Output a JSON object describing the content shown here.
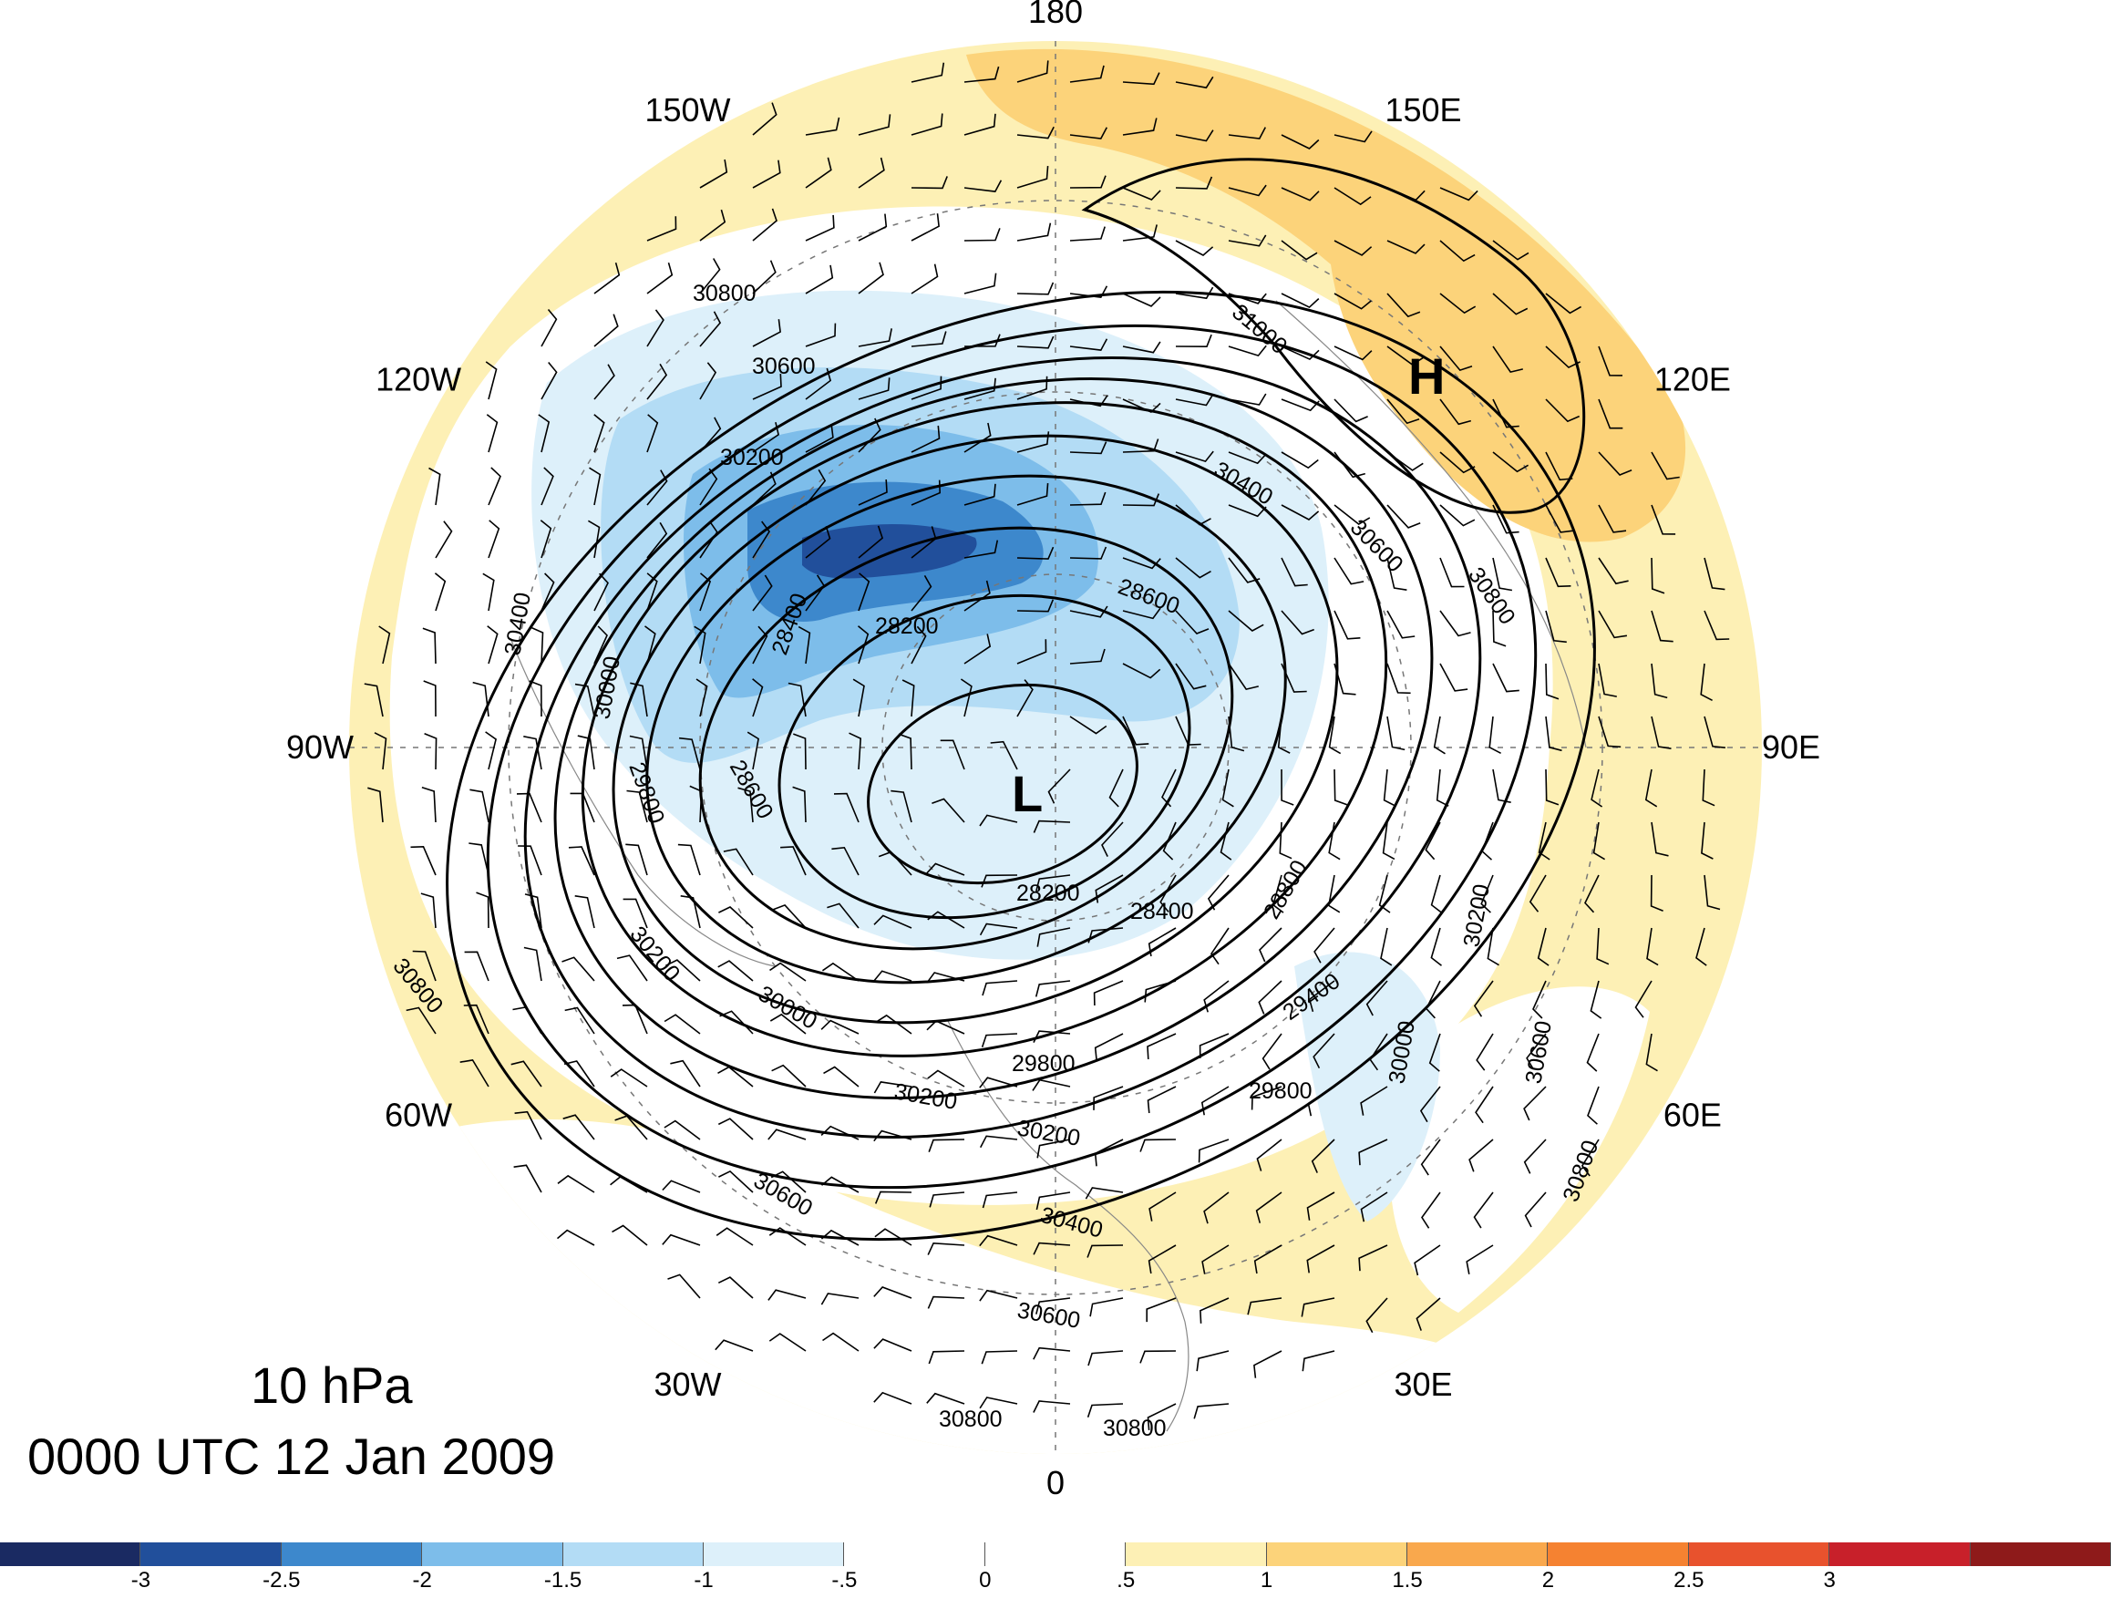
{
  "title": {
    "level": "10 hPa",
    "time": "0000 UTC 12 Jan 2009"
  },
  "longitude_labels": [
    {
      "text": "180",
      "lon": 180
    },
    {
      "text": "150E",
      "lon": 150
    },
    {
      "text": "120E",
      "lon": 120
    },
    {
      "text": "90E",
      "lon": 90
    },
    {
      "text": "60E",
      "lon": 60
    },
    {
      "text": "30E",
      "lon": 30
    },
    {
      "text": "0",
      "lon": 0
    },
    {
      "text": "30W",
      "lon": -30
    },
    {
      "text": "60W",
      "lon": -60
    },
    {
      "text": "90W",
      "lon": -90
    },
    {
      "text": "120W",
      "lon": -120
    },
    {
      "text": "150W",
      "lon": -150
    }
  ],
  "centers": [
    {
      "text": "L",
      "type": "low"
    },
    {
      "text": "H",
      "type": "high"
    }
  ],
  "contour_labels": [
    "30800",
    "30600",
    "30200",
    "30400",
    "30000",
    "29800",
    "28600",
    "28400",
    "28200",
    "31000",
    "30400",
    "30600",
    "30800",
    "28600",
    "28200",
    "28400",
    "28800",
    "30200",
    "29400",
    "30000",
    "30600",
    "30800",
    "29800",
    "29800",
    "30200",
    "30200",
    "30400",
    "30600",
    "30800",
    "30800",
    "30600",
    "30200",
    "30000",
    "30800"
  ],
  "colorbar": {
    "colors": [
      "#1a2a62",
      "#214f9b",
      "#3d88cc",
      "#7dbdea",
      "#b3dcf5",
      "#ddf0fa",
      "#ffffff",
      "#ffffff",
      "#fdf0b5",
      "#fcd37a",
      "#f9a84d",
      "#f58231",
      "#e8522d",
      "#c8202a",
      "#8e1a1a"
    ],
    "ticks": [
      "-3",
      "-2.5",
      "-2",
      "-1.5",
      "-1",
      "-.5",
      "0",
      ".5",
      "1",
      "1.5",
      "2",
      "2.5",
      "3"
    ]
  }
}
